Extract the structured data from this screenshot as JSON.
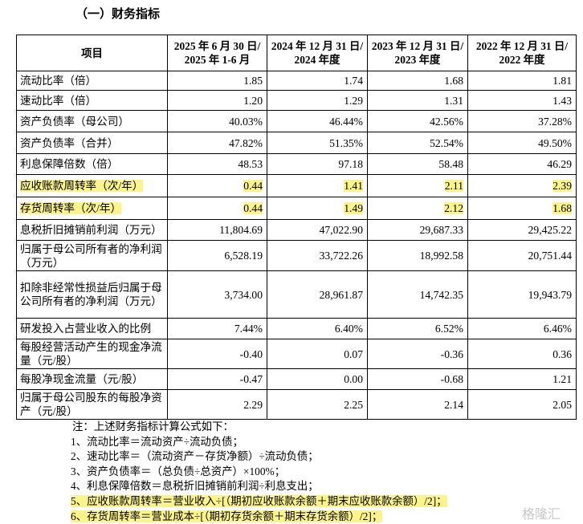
{
  "section_title": "（一）财务指标",
  "table": {
    "header": [
      [
        "项目"
      ],
      [
        "2025 年 6 月 30 日/",
        "2025 年 1-6 月"
      ],
      [
        "2024 年 12 月 31 日/",
        "2024 年度"
      ],
      [
        "2023 年 12 月 31 日/",
        "2023 年度"
      ],
      [
        "2022 年 12 月 31 日/",
        "2022 年度"
      ]
    ],
    "rows": [
      [
        "流动比率（倍）",
        "1.85",
        "1.74",
        "1.68",
        "1.81"
      ],
      [
        "速动比率（倍）",
        "1.20",
        "1.29",
        "1.31",
        "1.43"
      ],
      [
        "资产负债率（母公司）",
        "40.03%",
        "46.44%",
        "42.56%",
        "37.28%"
      ],
      [
        "资产负债率（合并）",
        "47.82%",
        "51.35%",
        "52.54%",
        "49.50%"
      ],
      [
        "利息保障倍数（倍）",
        "48.53",
        "97.18",
        "58.48",
        "46.29"
      ],
      [
        "应收账款周转率（次/年）",
        "0.44",
        "1.41",
        "2.11",
        "2.39"
      ],
      [
        "存货周转率（次/年）",
        "0.44",
        "1.49",
        "2.12",
        "1.68"
      ],
      [
        "息税折旧摊销前利润（万元）",
        "11,804.69",
        "47,022.90",
        "29,687.33",
        "29,425.22"
      ],
      [
        "归属于母公司所有者的净利润（万元）",
        "6,528.19",
        "33,722.26",
        "18,992.58",
        "20,751.44"
      ],
      [
        "扣除非经常性损益后归属于母公司所有者的净利润（万元）",
        "3,734.00",
        "28,961.87",
        "14,742.35",
        "19,943.79"
      ],
      [
        "研发投入占营业收入的比例",
        "7.44%",
        "6.40%",
        "6.52%",
        "6.46%"
      ],
      [
        "每股经营活动产生的现金净流量（元/股）",
        "-0.40",
        "0.07",
        "-0.36",
        "0.36"
      ],
      [
        "每股净现金流量（元/股）",
        "-0.47",
        "0.00",
        "-0.68",
        "1.21"
      ],
      [
        "归属于母公司股东的每股净资产（元/股）",
        "2.29",
        "2.25",
        "2.14",
        "2.05"
      ]
    ]
  },
  "notes": {
    "intro": "注：上述财务指标计算公式如下：",
    "items": [
      "1、流动比率＝流动资产÷流动负债；",
      "2、速动比率＝（流动资产－存货净额）÷流动负债；",
      "3、资产负债率＝（总负债÷总资产）×100%；",
      "4、利息保障倍数＝息税折旧摊销前利润÷利息支出；",
      "5、应收账款周转率＝营业收入÷[（期初应收账款余额＋期末应收账款余额）/2]；",
      "6、存货周转率＝营业成本÷[（期初存货余额＋期末存货余额）/2]；"
    ]
  },
  "watermark": "格隆汇"
}
